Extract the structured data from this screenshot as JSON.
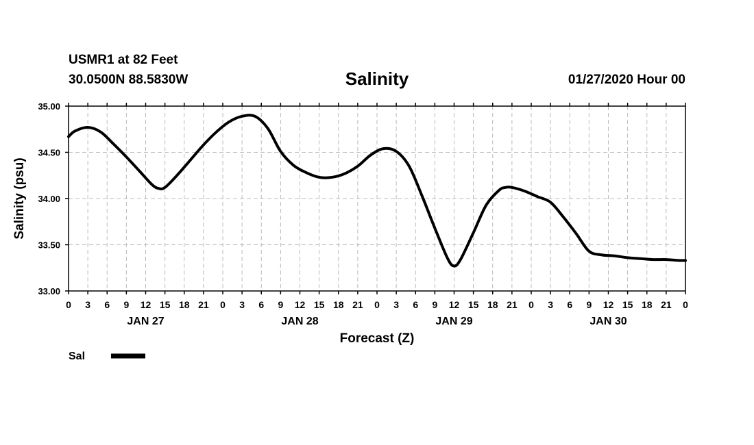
{
  "header": {
    "station": "USMR1 at 82 Feet",
    "coords": "30.0500N 88.5830W",
    "datetime": "01/27/2020 Hour 00"
  },
  "chart_data": {
    "type": "line",
    "title": "Salinity",
    "xlabel": "Forecast (Z)",
    "ylabel": "Salinity (psu)",
    "ylim": [
      33.0,
      35.0
    ],
    "xlim_hours": [
      0,
      96
    ],
    "grid": true,
    "yticks": [
      "33.00",
      "33.50",
      "34.00",
      "34.50",
      "35.00"
    ],
    "xtick_labels": [
      "0",
      "3",
      "6",
      "9",
      "12",
      "15",
      "18",
      "21",
      "0",
      "3",
      "6",
      "9",
      "12",
      "15",
      "18",
      "21",
      "0",
      "3",
      "6",
      "9",
      "12",
      "15",
      "18",
      "21",
      "0",
      "3",
      "6",
      "9",
      "12",
      "15",
      "18",
      "21",
      "0"
    ],
    "day_labels": [
      {
        "label": "JAN 27",
        "hour": 12
      },
      {
        "label": "JAN 28",
        "hour": 36
      },
      {
        "label": "JAN 29",
        "hour": 60
      },
      {
        "label": "JAN 30",
        "hour": 84
      }
    ],
    "legend": {
      "position": "bottom-left",
      "entries": [
        "Sal"
      ]
    },
    "series": [
      {
        "name": "Sal",
        "x": [
          0,
          1,
          3,
          5,
          7,
          9,
          11,
          13,
          14,
          15,
          17,
          19,
          21,
          23,
          25,
          27,
          29,
          31,
          33,
          35,
          37,
          39,
          41,
          43,
          45,
          47,
          49,
          51,
          53,
          55,
          57,
          59,
          60,
          61,
          63,
          65,
          67,
          68,
          69,
          71,
          73,
          75,
          77,
          79,
          81,
          83,
          85,
          87,
          89,
          91,
          93,
          95,
          96
        ],
        "values": [
          34.67,
          34.73,
          34.77,
          34.72,
          34.59,
          34.45,
          34.3,
          34.15,
          34.11,
          34.12,
          34.26,
          34.42,
          34.58,
          34.72,
          34.83,
          34.89,
          34.89,
          34.76,
          34.51,
          34.36,
          34.28,
          34.23,
          34.23,
          34.27,
          34.35,
          34.47,
          34.54,
          34.51,
          34.35,
          34.03,
          33.68,
          33.35,
          33.27,
          33.34,
          33.63,
          33.93,
          34.09,
          34.12,
          34.12,
          34.08,
          34.02,
          33.96,
          33.8,
          33.62,
          33.43,
          33.39,
          33.38,
          33.36,
          33.35,
          33.34,
          33.34,
          33.33,
          33.33
        ]
      }
    ]
  }
}
